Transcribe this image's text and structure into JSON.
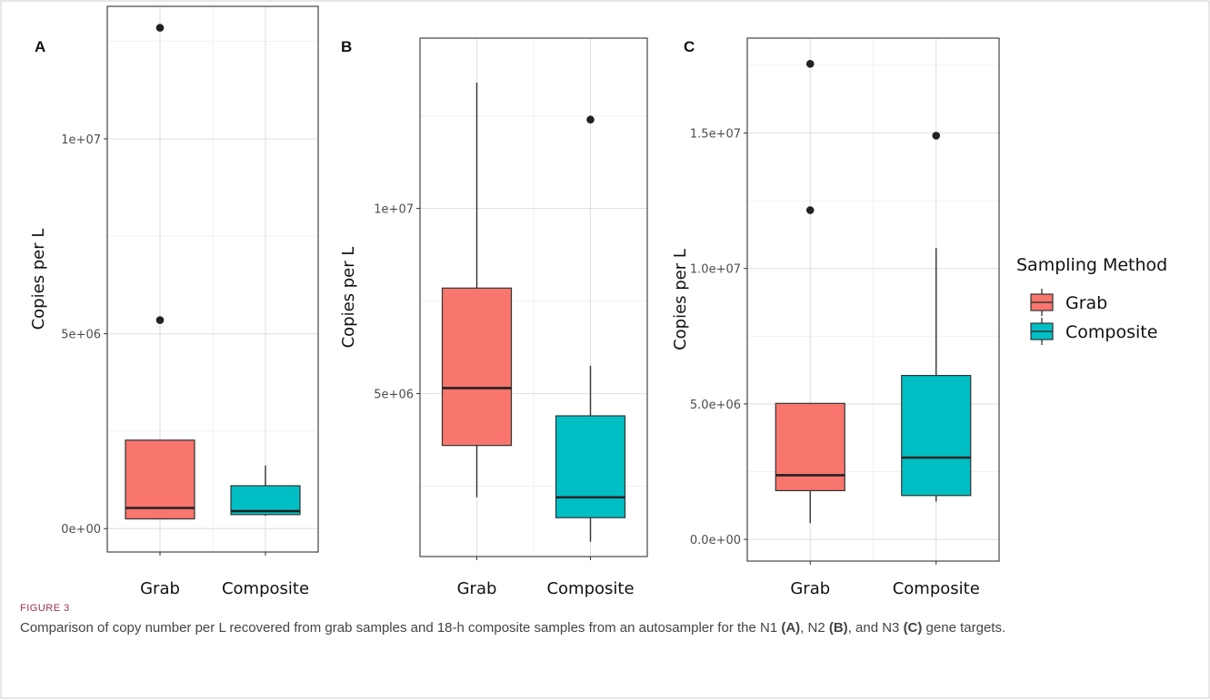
{
  "figure": {
    "label": "FIGURE 3",
    "caption_parts": [
      {
        "text": "Comparison of copy number per L recovered from grab samples and 18-h composite samples from an autosampler for the N1 ",
        "bold": false
      },
      {
        "text": "(A)",
        "bold": true
      },
      {
        "text": ", N2 ",
        "bold": false
      },
      {
        "text": "(B)",
        "bold": true
      },
      {
        "text": ", and N3 ",
        "bold": false
      },
      {
        "text": "(C)",
        "bold": true
      },
      {
        "text": " gene targets.",
        "bold": false
      }
    ]
  },
  "legend": {
    "title": "Sampling Method",
    "entries": [
      {
        "label": "Grab",
        "color": "#F8766D"
      },
      {
        "label": "Composite",
        "color": "#00BFC4"
      }
    ]
  },
  "colors": {
    "grab": "#F8766D",
    "composite": "#00BFC4",
    "panel_border": "#333333",
    "grid_major": "#e3e3e3",
    "grid_minor": "#f1f1f1",
    "box_line": "#333333"
  },
  "chart_data": [
    {
      "panel": "A",
      "type": "boxplot",
      "categories": [
        "Grab",
        "Composite"
      ],
      "ylabel": "Copies per L",
      "ylim": [
        -600000,
        13400000
      ],
      "yticks": [
        0,
        5000000,
        10000000
      ],
      "ytick_labels": [
        "0e+00",
        "5e+06",
        "1e+07"
      ],
      "boxes": [
        {
          "category": "Grab",
          "min": 250000,
          "q1": 250000,
          "median": 530000,
          "q3": 2270000,
          "max": 2270000,
          "outliers": [
            5350000,
            12850000
          ]
        },
        {
          "category": "Composite",
          "min": 330000,
          "q1": 360000,
          "median": 450000,
          "q3": 1100000,
          "max": 1620000,
          "outliers": []
        }
      ]
    },
    {
      "panel": "B",
      "type": "boxplot",
      "categories": [
        "Grab",
        "Composite"
      ],
      "ylabel": "Copies per L",
      "ylim": [
        600000,
        14600000
      ],
      "yticks": [
        5000000,
        10000000
      ],
      "ytick_labels": [
        "5e+06",
        "1e+07"
      ],
      "boxes": [
        {
          "category": "Grab",
          "min": 2200000,
          "q1": 3600000,
          "median": 5150000,
          "q3": 7850000,
          "max": 13400000,
          "outliers": []
        },
        {
          "category": "Composite",
          "min": 1000000,
          "q1": 1650000,
          "median": 2200000,
          "q3": 4400000,
          "max": 5750000,
          "outliers": [
            12400000
          ]
        }
      ]
    },
    {
      "panel": "C",
      "type": "boxplot",
      "categories": [
        "Grab",
        "Composite"
      ],
      "ylabel": "Copies per L",
      "ylim": [
        -800000,
        18500000
      ],
      "yticks": [
        0,
        5000000,
        10000000,
        15000000
      ],
      "ytick_labels": [
        "0.0e+00",
        "5.0e+06",
        "1.0e+07",
        "1.5e+07"
      ],
      "boxes": [
        {
          "category": "Grab",
          "min": 600000,
          "q1": 1800000,
          "median": 2370000,
          "q3": 5020000,
          "max": 5020000,
          "outliers": [
            12150000,
            17550000
          ]
        },
        {
          "category": "Composite",
          "min": 1400000,
          "q1": 1620000,
          "median": 3020000,
          "q3": 6050000,
          "max": 10750000,
          "outliers": [
            14900000
          ]
        }
      ]
    }
  ]
}
